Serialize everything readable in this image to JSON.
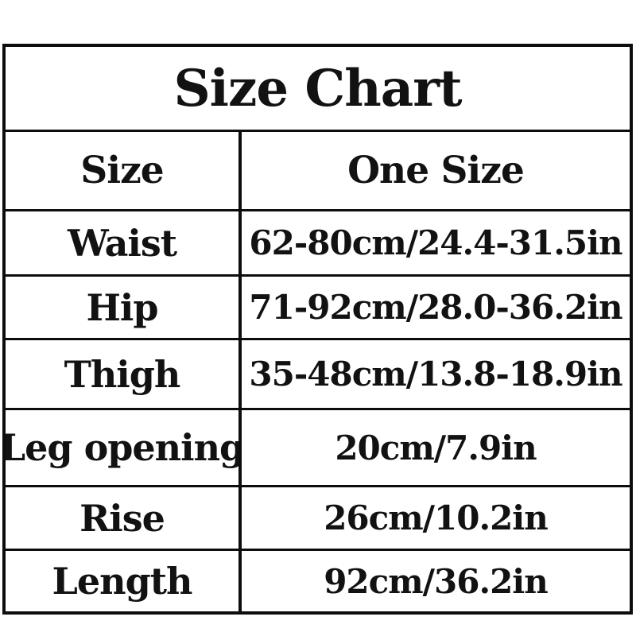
{
  "table": {
    "title": "Size Chart",
    "rows": [
      {
        "label": "Size",
        "value": "One Size"
      },
      {
        "label": "Waist",
        "value": "62-80cm/24.4-31.5in"
      },
      {
        "label": "Hip",
        "value": "71-92cm/28.0-36.2in"
      },
      {
        "label": "Thigh",
        "value": "35-48cm/13.8-18.9in"
      },
      {
        "label": "Leg opening",
        "value": "20cm/7.9in"
      },
      {
        "label": "Rise",
        "value": "26cm/10.2in"
      },
      {
        "label": "Length",
        "value": "92cm/36.2in"
      }
    ],
    "colors": {
      "text": "#121212",
      "border": "#0d0d0d",
      "background": "#ffffff"
    }
  }
}
